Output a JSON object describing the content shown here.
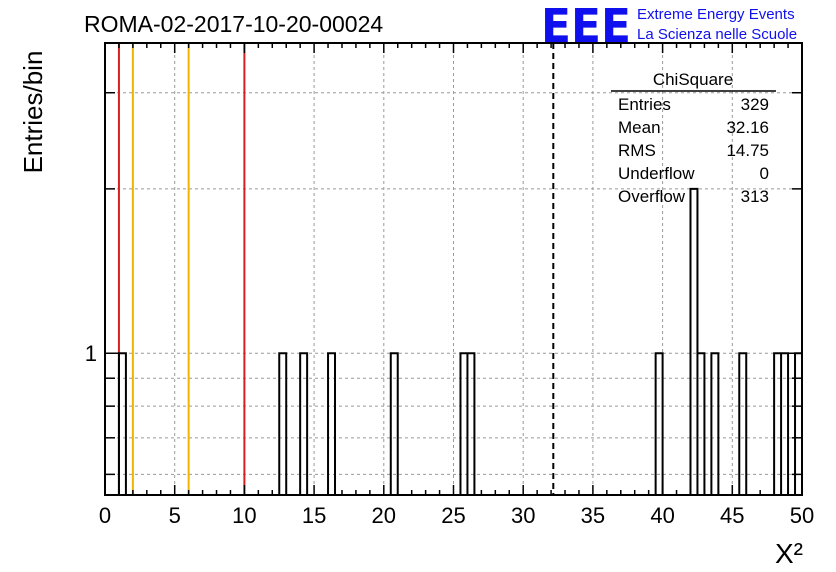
{
  "header": {
    "title": "ROMA-02-2017-10-20-00024"
  },
  "logo": {
    "mark": "EEE",
    "line1": "Extreme Energy Events",
    "line2": "La Scienza nelle Scuole",
    "color": "#1010ee"
  },
  "stats": {
    "title": "ChiSquare",
    "rows": [
      {
        "label": "Entries",
        "value": "329"
      },
      {
        "label": "Mean",
        "value": "32.16"
      },
      {
        "label": "RMS",
        "value": "14.75"
      },
      {
        "label": "Underflow",
        "value": "0"
      },
      {
        "label": "Overflow",
        "value": "313"
      }
    ]
  },
  "chart_data": {
    "type": "histogram",
    "title": "ROMA-02-2017-10-20-00024",
    "xlabel": "X²",
    "ylabel": "Entries/bin",
    "xlim": [
      0,
      50
    ],
    "ylim": [
      0.55,
      3.7
    ],
    "yscale": "log",
    "grid": true,
    "x_ticks": [
      0,
      5,
      10,
      15,
      20,
      25,
      30,
      35,
      40,
      45,
      50
    ],
    "y_tick_labels": [
      {
        "value": 1,
        "label": "1"
      }
    ],
    "bin_width": 0.5,
    "bins": [
      {
        "x": 1.0,
        "count": 1
      },
      {
        "x": 12.5,
        "count": 1
      },
      {
        "x": 14.0,
        "count": 1
      },
      {
        "x": 16.0,
        "count": 1
      },
      {
        "x": 20.5,
        "count": 1
      },
      {
        "x": 25.5,
        "count": 1
      },
      {
        "x": 26.0,
        "count": 1
      },
      {
        "x": 39.5,
        "count": 1
      },
      {
        "x": 42.0,
        "count": 2
      },
      {
        "x": 42.5,
        "count": 1
      },
      {
        "x": 43.5,
        "count": 1
      },
      {
        "x": 45.5,
        "count": 1
      },
      {
        "x": 48.0,
        "count": 1
      },
      {
        "x": 48.5,
        "count": 1
      },
      {
        "x": 49.5,
        "count": 1
      }
    ],
    "reference_lines": [
      {
        "x": 1,
        "color": "#d42020",
        "style": "solid"
      },
      {
        "x": 2,
        "color": "#f0b400",
        "style": "solid"
      },
      {
        "x": 6,
        "color": "#f0b400",
        "style": "solid"
      },
      {
        "x": 10,
        "color": "#d42020",
        "style": "solid"
      },
      {
        "x": 32.16,
        "color": "#000000",
        "style": "dashed"
      }
    ]
  }
}
